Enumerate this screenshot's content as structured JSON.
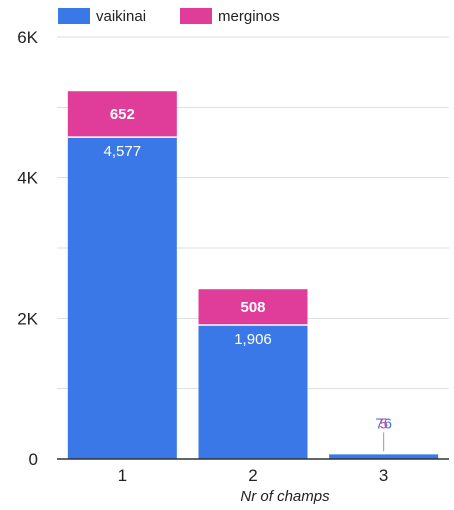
{
  "chart_data": {
    "type": "bar",
    "stacked": true,
    "categories": [
      "1",
      "2",
      "3"
    ],
    "series": [
      {
        "name": "vaikinai",
        "color": "#3b78e7",
        "values": [
          4577,
          1906,
          76
        ],
        "labels": [
          "4,577",
          "1,906",
          "76"
        ]
      },
      {
        "name": "merginos",
        "color": "#e03c9a",
        "values": [
          652,
          508,
          5
        ],
        "labels": [
          "652",
          "508",
          "5"
        ]
      }
    ],
    "xlabel": "Nr of champs",
    "ylabel": "",
    "ylim": [
      0,
      6000
    ],
    "yticks": [
      0,
      2000,
      4000,
      6000
    ],
    "ytick_labels": [
      "0",
      "2K",
      "4K",
      "6K"
    ],
    "grid": true,
    "legend_position": "top-left"
  }
}
